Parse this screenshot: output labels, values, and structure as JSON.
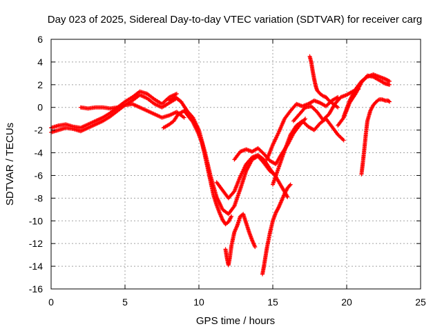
{
  "chart_data": {
    "type": "scatter",
    "title": "Day 023 of 2025, Sidereal Day-to-day VTEC variation (SDTVAR) for receiver carg",
    "xlabel": "GPS time / hours",
    "ylabel": "SDTVAR / TECUs",
    "xlim": [
      0,
      25
    ],
    "ylim": [
      -16,
      6
    ],
    "xticks": [
      0,
      5,
      10,
      15,
      20,
      25
    ],
    "yticks": [
      -16,
      -14,
      -12,
      -10,
      -8,
      -6,
      -4,
      -2,
      0,
      2,
      4,
      6
    ],
    "grid": true,
    "legend": "none",
    "marker": "+",
    "series_color": "#ff0000",
    "series": [
      {
        "x": [
          0,
          0.5,
          1.0,
          1.5,
          2.0,
          2.5,
          3.0,
          3.5,
          4.0,
          4.5,
          5.0,
          5.5,
          6.0,
          6.5,
          7.0,
          7.5,
          8.0,
          8.5,
          8.8
        ],
        "y": [
          -2.2,
          -2.0,
          -1.8,
          -1.9,
          -2.1,
          -1.8,
          -1.5,
          -1.2,
          -0.8,
          -0.3,
          0.2,
          0.6,
          1.1,
          0.8,
          0.3,
          0.0,
          0.4,
          0.8,
          0.5
        ]
      },
      {
        "x": [
          0,
          0.5,
          1.0,
          1.5,
          2.0,
          2.5,
          3.0,
          3.5,
          4.0,
          4.5,
          5.0,
          5.5,
          6.0,
          6.5,
          7.0,
          7.5,
          8.0,
          8.5
        ],
        "y": [
          -1.8,
          -1.6,
          -1.5,
          -1.7,
          -1.8,
          -1.5,
          -1.2,
          -0.9,
          -0.5,
          0.0,
          0.5,
          0.9,
          1.4,
          1.2,
          0.7,
          0.3,
          0.9,
          1.2
        ]
      },
      {
        "x": [
          2.0,
          2.5,
          3.0,
          3.5,
          4.0,
          4.5,
          5.0,
          5.5,
          6.0,
          6.5,
          7.0,
          7.5,
          8.0,
          8.5,
          9.0
        ],
        "y": [
          0.0,
          -0.1,
          0.0,
          0.0,
          -0.1,
          0.0,
          0.2,
          0.3,
          0.0,
          -0.3,
          -0.6,
          -0.9,
          -0.7,
          -0.4,
          -0.9
        ]
      },
      {
        "x": [
          7.6,
          8.0,
          8.3,
          8.6,
          9.0,
          9.3,
          9.6,
          10.0,
          10.2,
          10.4,
          10.6,
          10.8,
          11.0,
          11.2,
          11.4,
          11.6,
          11.8,
          12.0,
          12.2
        ],
        "y": [
          -1.8,
          -1.5,
          -1.2,
          -0.6,
          -0.3,
          -0.8,
          -1.3,
          -2.4,
          -3.1,
          -4.2,
          -5.4,
          -6.6,
          -7.8,
          -8.6,
          -9.3,
          -9.9,
          -10.3,
          -10.1,
          -9.6
        ]
      },
      {
        "x": [
          8.0,
          8.4,
          8.8,
          9.2,
          9.6,
          10.0,
          10.4,
          10.8,
          11.2,
          11.6,
          12.0,
          12.4,
          12.8,
          13.2,
          13.6,
          14.0,
          14.4,
          14.8,
          15.2
        ],
        "y": [
          0.6,
          0.9,
          0.5,
          -0.3,
          -0.9,
          -2.0,
          -3.9,
          -6.1,
          -7.9,
          -9.0,
          -9.4,
          -8.7,
          -7.2,
          -5.6,
          -4.6,
          -4.3,
          -4.9,
          -5.6,
          -6.0
        ]
      },
      {
        "x": [
          11.8,
          11.9,
          12.0,
          12.1,
          12.2,
          12.4,
          12.6,
          12.8,
          13.0,
          13.2,
          13.4,
          13.6,
          13.8
        ],
        "y": [
          -12.5,
          -13.3,
          -13.9,
          -13.2,
          -12.2,
          -11.0,
          -10.4,
          -9.6,
          -9.4,
          -10.2,
          -11.0,
          -11.7,
          -12.3
        ]
      },
      {
        "x": [
          11.2,
          11.6,
          12.0,
          12.4,
          12.8,
          13.2,
          13.6,
          14.0,
          14.4,
          14.8,
          15.2,
          15.6,
          16.0
        ],
        "y": [
          -6.6,
          -7.3,
          -8.0,
          -7.4,
          -6.1,
          -5.0,
          -4.4,
          -4.2,
          -4.6,
          -5.4,
          -6.1,
          -7.0,
          -7.9
        ]
      },
      {
        "x": [
          12.4,
          12.8,
          13.2,
          13.6,
          14.0,
          14.4,
          14.8,
          15.2,
          15.6,
          16.0,
          16.4,
          16.8,
          17.2
        ],
        "y": [
          -4.6,
          -3.9,
          -3.7,
          -3.9,
          -3.6,
          -4.1,
          -4.7,
          -5.0,
          -4.1,
          -3.3,
          -2.3,
          -1.6,
          -1.0
        ]
      },
      {
        "x": [
          14.3,
          14.4,
          14.5,
          14.6,
          14.8,
          15.0,
          15.2,
          15.4,
          15.6,
          15.8,
          16.0,
          16.2
        ],
        "y": [
          -14.7,
          -14.0,
          -13.2,
          -12.4,
          -11.1,
          -10.0,
          -9.3,
          -8.8,
          -8.2,
          -7.6,
          -7.1,
          -6.8
        ]
      },
      {
        "x": [
          14.6,
          15.0,
          15.4,
          15.8,
          16.2,
          16.6,
          17.0,
          17.4,
          17.8,
          18.2,
          18.6,
          19.0,
          19.4
        ],
        "y": [
          -4.6,
          -3.3,
          -2.2,
          -1.0,
          -0.3,
          0.3,
          0.1,
          0.3,
          0.6,
          0.4,
          0.1,
          0.6,
          0.9
        ]
      },
      {
        "x": [
          15.0,
          15.4,
          15.8,
          16.2,
          16.6,
          17.0,
          17.4,
          17.8,
          18.2,
          18.6,
          19.0,
          19.4,
          19.8
        ],
        "y": [
          -6.8,
          -5.3,
          -3.8,
          -2.4,
          -1.6,
          -1.2,
          -1.7,
          -2.0,
          -1.4,
          -1.0,
          -1.7,
          -2.4,
          -2.9
        ]
      },
      {
        "x": [
          16.4,
          16.8,
          17.2,
          17.6,
          18.0,
          18.4,
          18.8,
          19.2,
          19.6,
          20.0,
          20.4,
          20.8
        ],
        "y": [
          -1.2,
          -0.6,
          0.0,
          0.1,
          -0.4,
          -1.1,
          -0.6,
          0.3,
          0.9,
          1.1,
          1.4,
          1.6
        ]
      },
      {
        "x": [
          17.5,
          17.6,
          17.7,
          17.8,
          17.9,
          18.0,
          18.2,
          18.4,
          18.6,
          18.8,
          19.0,
          19.2,
          19.4
        ],
        "y": [
          4.5,
          4.0,
          3.2,
          2.5,
          1.9,
          1.5,
          1.2,
          1.0,
          0.9,
          0.6,
          0.4,
          0.2,
          0.0
        ]
      },
      {
        "x": [
          19.4,
          19.8,
          20.2,
          20.6,
          21.0,
          21.4,
          21.8,
          22.2,
          22.6,
          22.9
        ],
        "y": [
          -1.6,
          -0.9,
          0.4,
          1.2,
          2.2,
          2.8,
          2.7,
          2.4,
          2.1,
          2.0
        ]
      },
      {
        "x": [
          19.8,
          20.2,
          20.6,
          21.0,
          21.4,
          21.8,
          22.2,
          22.6,
          22.9
        ],
        "y": [
          -0.8,
          0.6,
          1.6,
          2.3,
          2.7,
          2.9,
          2.7,
          2.5,
          2.3
        ]
      },
      {
        "x": [
          21.0,
          21.1,
          21.2,
          21.3,
          21.4,
          21.6,
          21.8,
          22.0,
          22.2,
          22.4,
          22.6,
          22.8,
          22.9
        ],
        "y": [
          -5.9,
          -4.8,
          -3.6,
          -2.3,
          -1.2,
          -0.3,
          0.2,
          0.5,
          0.7,
          0.7,
          0.6,
          0.6,
          0.5
        ]
      }
    ]
  }
}
